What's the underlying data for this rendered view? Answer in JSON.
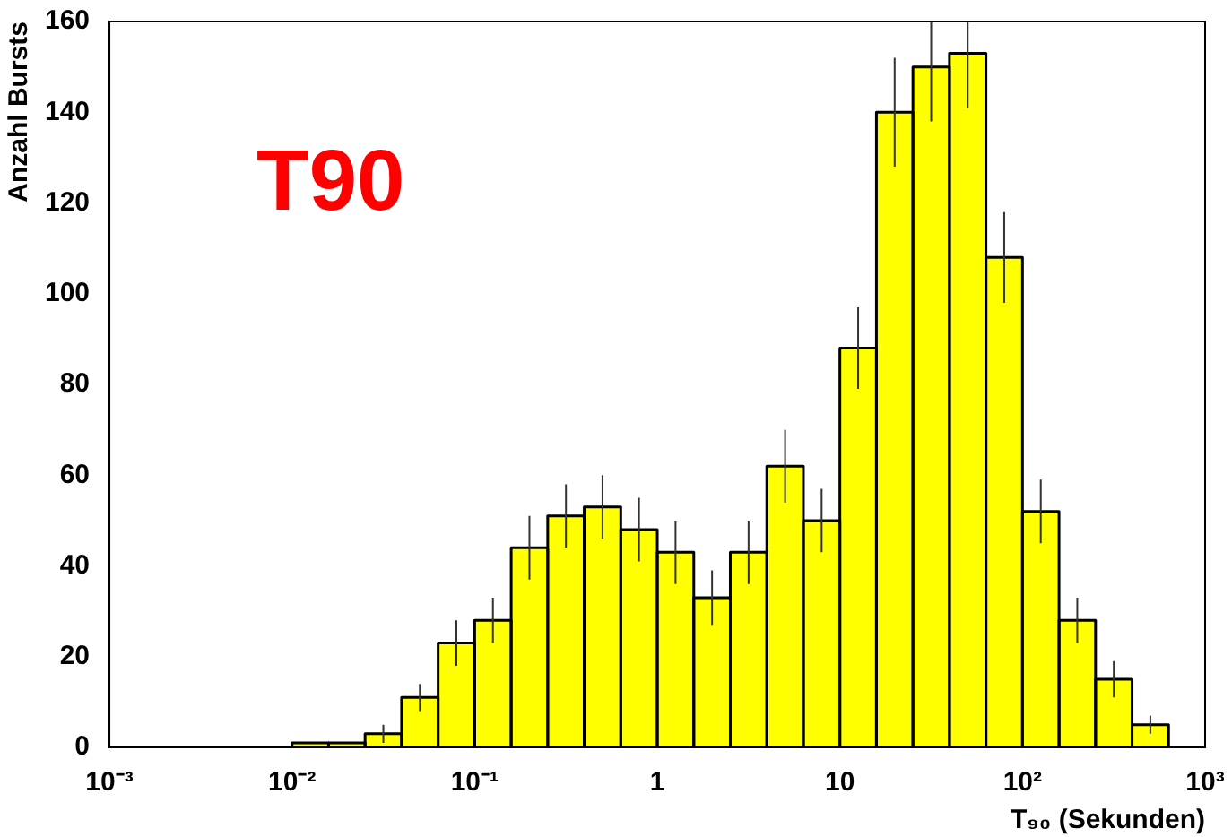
{
  "chart_data": {
    "type": "histogram",
    "xlabel": "T₉₀ (Sekunden)",
    "ylabel": "Anzahl Bursts",
    "annotations": [
      "T90"
    ],
    "bins": [
      0.01,
      0.01585,
      0.02512,
      0.03981,
      0.0631,
      0.1,
      0.1585,
      0.2512,
      0.3981,
      0.631,
      1,
      1.585,
      2.512,
      3.981,
      6.31,
      10,
      15.85,
      25.12,
      39.81,
      63.1,
      100,
      158.5,
      251.2,
      398.1,
      631
    ],
    "values": [
      1,
      1,
      3,
      11,
      23,
      28,
      44,
      51,
      53,
      48,
      43,
      33,
      43,
      62,
      50,
      88,
      140,
      150,
      153,
      108,
      52,
      28,
      15,
      5
    ],
    "errors": [
      null,
      null,
      2,
      3,
      5,
      5,
      7,
      7,
      7,
      7,
      7,
      6,
      7,
      8,
      7,
      9,
      12,
      [
        138,
        160
      ],
      [
        141,
        160
      ],
      10,
      7,
      5,
      4,
      2
    ],
    "color": "#ffff00",
    "log": "x",
    "grid": false,
    "legend": false,
    "xlim": [
      0.001,
      1000
    ],
    "xticks": [
      {
        "value": 0.001,
        "label": "10⁻³"
      },
      {
        "value": 0.01,
        "label": "10⁻²"
      },
      {
        "value": 0.1,
        "label": "10⁻¹"
      },
      1,
      10,
      {
        "value": 100,
        "label": "10²"
      },
      {
        "value": 1000,
        "label": "10³"
      }
    ],
    "ylim": [
      0,
      160
    ],
    "yticks": [
      0,
      20,
      40,
      60,
      80,
      100,
      120,
      140,
      160
    ]
  }
}
